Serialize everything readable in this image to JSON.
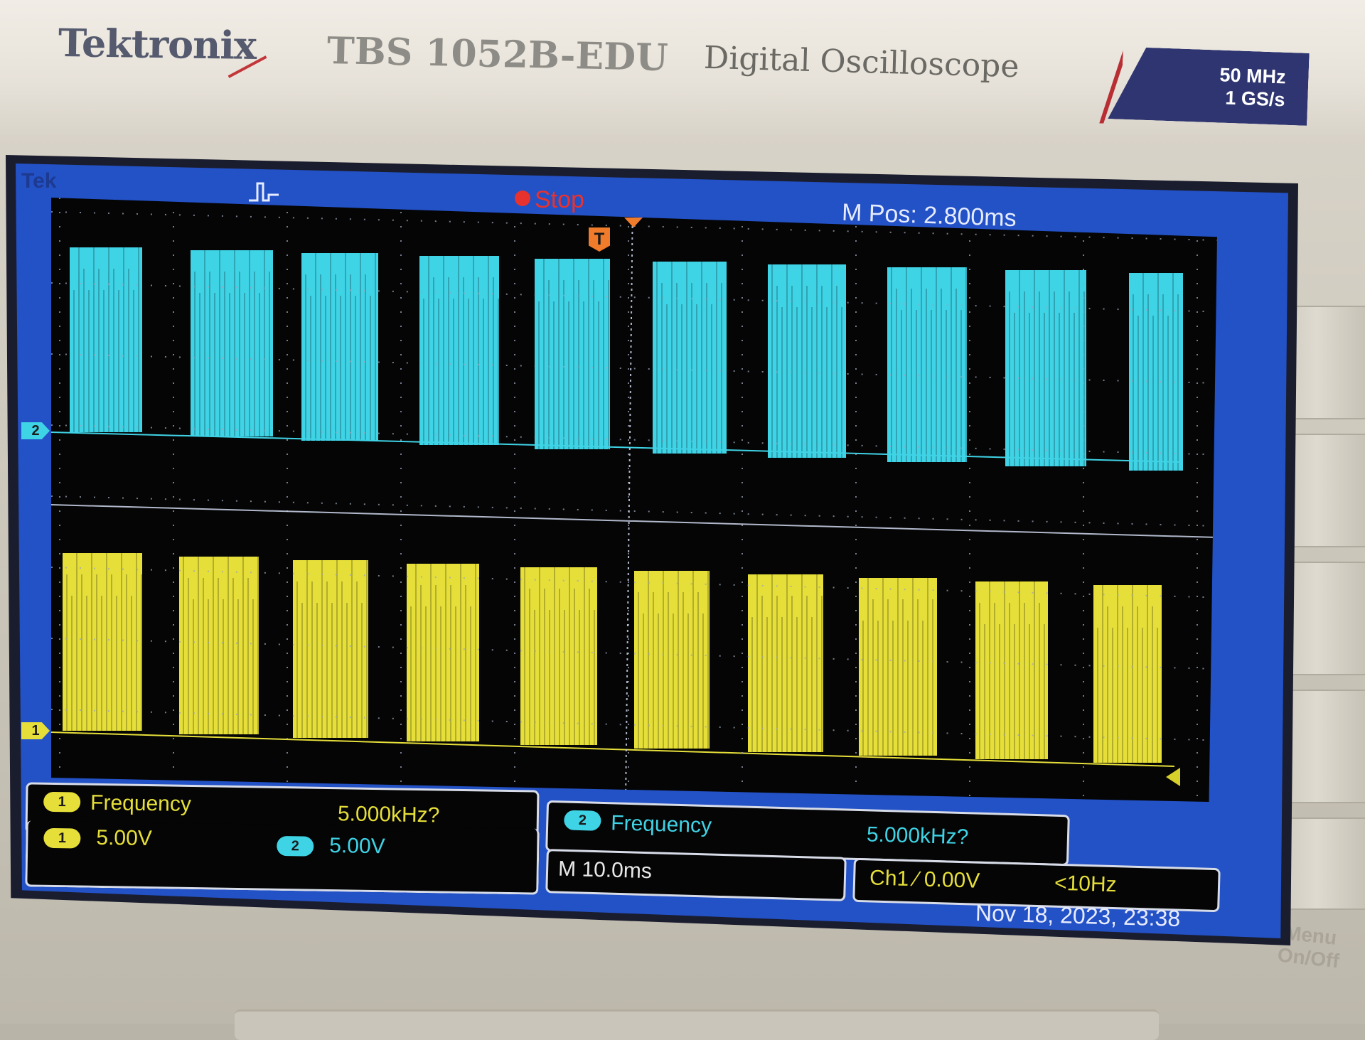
{
  "header": {
    "brand": "Tektronix",
    "model": "TBS 1052B-EDU",
    "subtitle": "Digital Oscilloscope",
    "bandwidth": "50 MHz",
    "sample_rate": "1 GS/s"
  },
  "panel": {
    "menu_label_line1": "Menu",
    "menu_label_line2": "On/Off"
  },
  "status": {
    "logo": "Tek",
    "run_state": "Stop",
    "m_pos": "M Pos: 2.800ms",
    "trigger_marker": "T"
  },
  "channels": {
    "ch1_marker": "1",
    "ch2_marker": "2",
    "ch1_color": "#e6df3a",
    "ch2_color": "#3fd3e6"
  },
  "measurements": {
    "m1_chip": "1",
    "m1_label": "Frequency",
    "m1_value": "5.000kHz?",
    "m2_chip": "2",
    "m2_label": "Frequency",
    "m2_value": "5.000kHz?"
  },
  "scales": {
    "ch1_chip": "1",
    "ch1_volts": "5.00V",
    "ch2_chip": "2",
    "ch2_volts": "5.00V",
    "timebase": "M 10.0ms",
    "trigger": "Ch1 ∕ 0.00V",
    "trigger_freq": "<10Hz"
  },
  "datetime": "Nov 18, 2023, 23:38"
}
